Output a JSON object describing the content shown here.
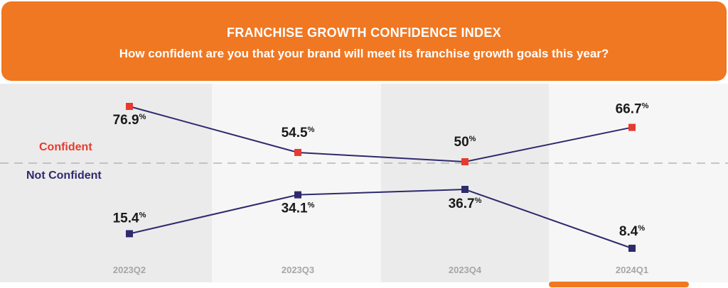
{
  "header": {
    "title": "FRANCHISE GROWTH CONFIDENCE INDEX",
    "subtitle": "How confident are you that your brand will meet its franchise growth goals this year?"
  },
  "labels": {
    "confident": "Confident",
    "not_confident": "Not Confident"
  },
  "colors": {
    "header_orange": "#f07822",
    "confident_marker": "#e63b2e",
    "not_confident_marker": "#2e2a6e",
    "line": "#2e2a6e",
    "band_dark": "#ebebeb",
    "band_light": "#f6f6f6"
  },
  "chart_data": {
    "type": "line",
    "categories": [
      "2023Q2",
      "2023Q3",
      "2023Q4",
      "2024Q1"
    ],
    "series": [
      {
        "name": "Confident",
        "values": [
          76.9,
          54.5,
          50,
          66.7
        ],
        "labels": [
          "76.9",
          "54.5",
          "50",
          "66.7"
        ]
      },
      {
        "name": "Not Confident",
        "values": [
          15.4,
          34.1,
          36.7,
          8.4
        ],
        "labels": [
          "15.4",
          "34.1",
          "36.7",
          "8.4"
        ]
      }
    ],
    "value_suffix": "%"
  }
}
